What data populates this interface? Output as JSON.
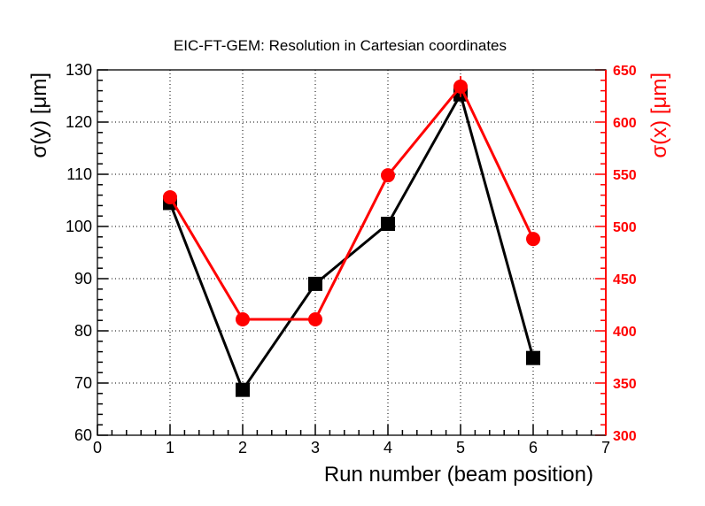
{
  "chart_data": {
    "type": "line",
    "title": "EIC-FT-GEM: Resolution in Cartesian coordinates",
    "xlabel": "Run number (beam position)",
    "ylabel_left": "σ(y) [μm]",
    "ylabel_right": "σ(x) [μm]",
    "xlim": [
      0,
      7
    ],
    "ylim_left": [
      60,
      130
    ],
    "ylim_right": [
      300,
      650
    ],
    "x_ticks": [
      0,
      1,
      2,
      3,
      4,
      5,
      6,
      7
    ],
    "y_left_ticks": [
      60,
      70,
      80,
      90,
      100,
      110,
      120,
      130
    ],
    "y_right_ticks": [
      300,
      350,
      400,
      450,
      500,
      550,
      600,
      650
    ],
    "grid": true,
    "series": [
      {
        "axis": "left",
        "color": "#000000",
        "marker": "square",
        "points": [
          {
            "x": 1,
            "y": 104.5,
            "err": 0.5
          },
          {
            "x": 2,
            "y": 68.7,
            "err": 0.5
          },
          {
            "x": 3,
            "y": 89.0,
            "err": 0.5
          },
          {
            "x": 4,
            "y": 100.5,
            "err": 0.5
          },
          {
            "x": 5,
            "y": 125.3,
            "err": 0.6
          },
          {
            "x": 6,
            "y": 74.8,
            "err": 0.5
          }
        ]
      },
      {
        "axis": "right",
        "color": "#ff0000",
        "marker": "circle",
        "points": [
          {
            "x": 1,
            "y": 528,
            "err": 2
          },
          {
            "x": 2,
            "y": 411,
            "err": 2
          },
          {
            "x": 3,
            "y": 411,
            "err": 2
          },
          {
            "x": 4,
            "y": 549,
            "err": 2
          },
          {
            "x": 5,
            "y": 634,
            "err": 10
          },
          {
            "x": 6,
            "y": 488,
            "err": 2
          }
        ]
      }
    ]
  }
}
